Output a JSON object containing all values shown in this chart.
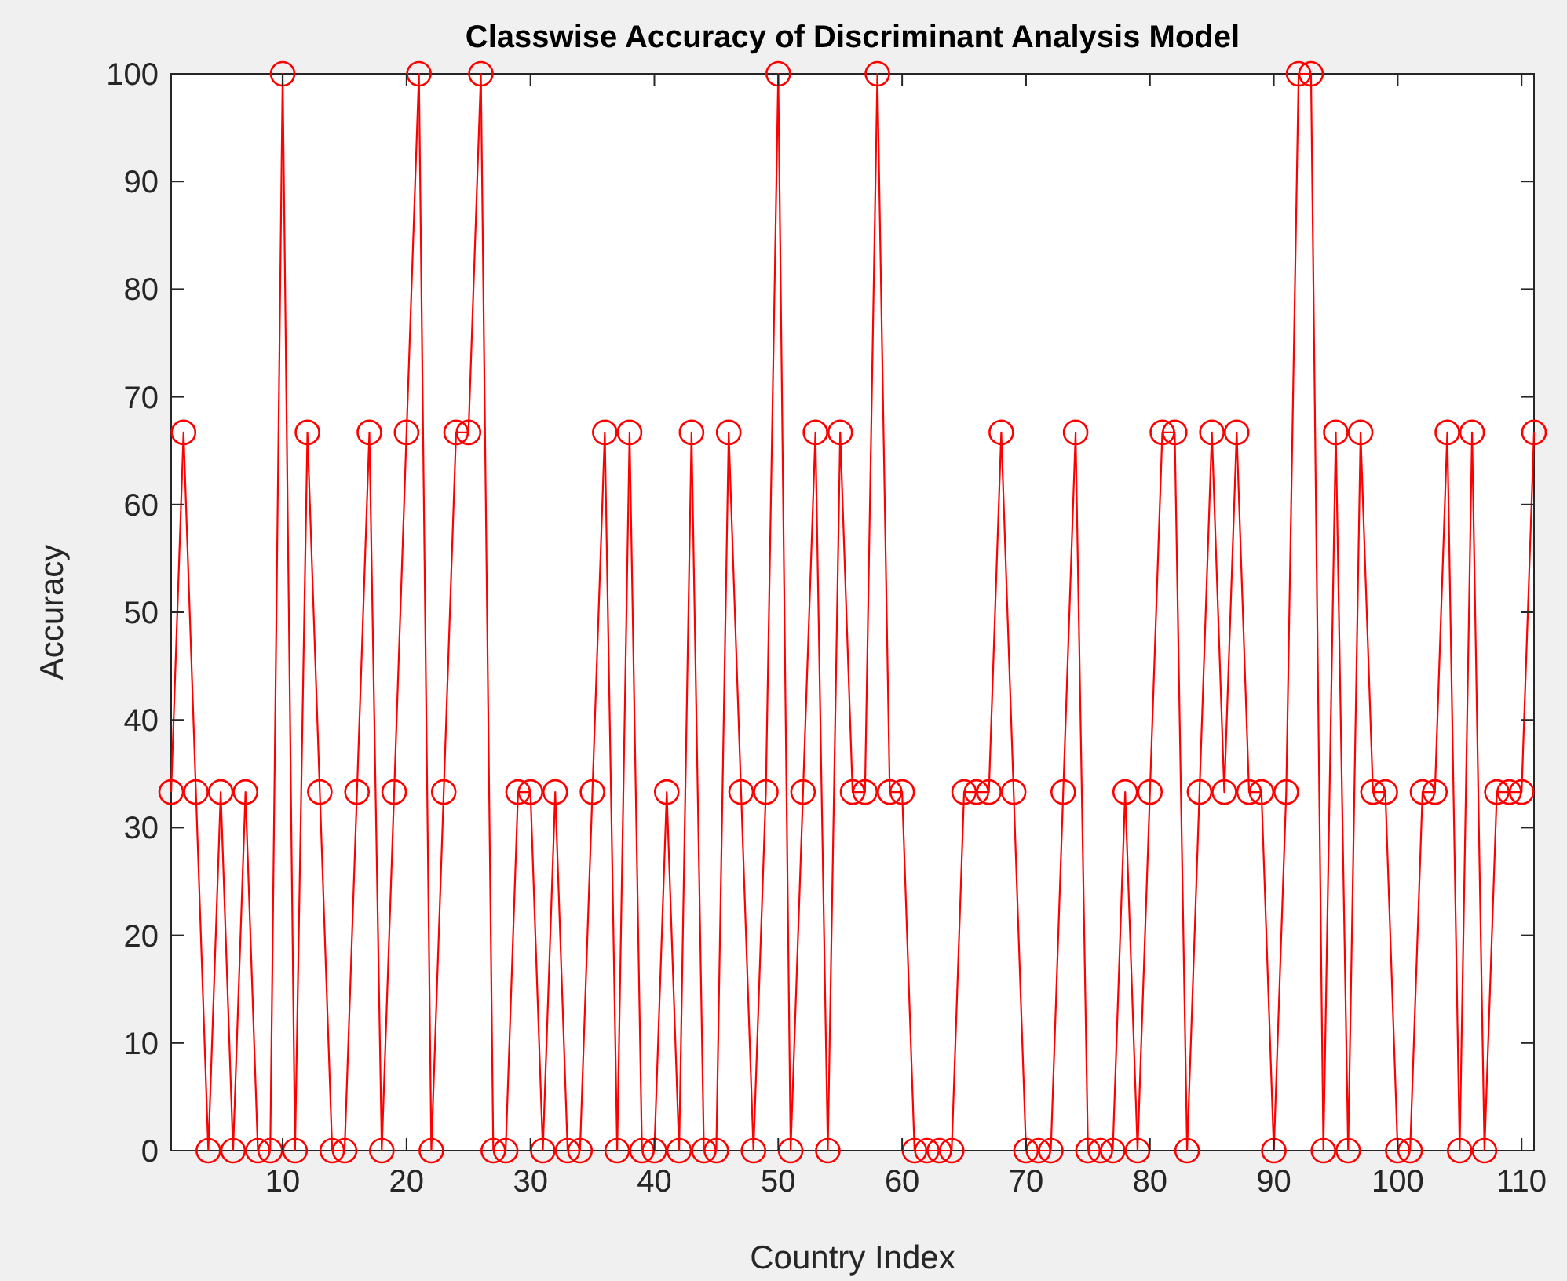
{
  "chart_data": {
    "type": "line",
    "title": "Classwise Accuracy of Discriminant Analysis Model",
    "xlabel": "Country Index",
    "ylabel": "Accuracy",
    "x": [
      1,
      2,
      3,
      4,
      5,
      6,
      7,
      8,
      9,
      10,
      11,
      12,
      13,
      14,
      15,
      16,
      17,
      18,
      19,
      20,
      21,
      22,
      23,
      24,
      25,
      26,
      27,
      28,
      29,
      30,
      31,
      32,
      33,
      34,
      35,
      36,
      37,
      38,
      39,
      40,
      41,
      42,
      43,
      44,
      45,
      46,
      47,
      48,
      49,
      50,
      51,
      52,
      53,
      54,
      55,
      56,
      57,
      58,
      59,
      60,
      61,
      62,
      63,
      64,
      65,
      66,
      67,
      68,
      69,
      70,
      71,
      72,
      73,
      74,
      75,
      76,
      77,
      78,
      79,
      80,
      81,
      82,
      83,
      84,
      85,
      86,
      87,
      88,
      89,
      90,
      91,
      92,
      93,
      94,
      95,
      96,
      97,
      98,
      99,
      100,
      101,
      102,
      103,
      104,
      105,
      106,
      107,
      108,
      109,
      110,
      111
    ],
    "series": [
      {
        "color": "#ff0000",
        "values": [
          33.3,
          66.7,
          33.3,
          0,
          33.3,
          0,
          33.3,
          0,
          0,
          100,
          0,
          66.7,
          33.3,
          0,
          0,
          33.3,
          66.7,
          0,
          33.3,
          66.7,
          100,
          0,
          33.3,
          66.7,
          66.7,
          100,
          0,
          0,
          33.3,
          33.3,
          0,
          33.3,
          0,
          0,
          33.3,
          66.7,
          0,
          66.7,
          0,
          0,
          33.3,
          0,
          66.7,
          0,
          0,
          66.7,
          33.3,
          0,
          33.3,
          100,
          0,
          33.3,
          66.7,
          0,
          66.7,
          33.3,
          33.3,
          100,
          33.3,
          33.3,
          0,
          0,
          0,
          0,
          33.3,
          33.3,
          33.3,
          66.7,
          33.3,
          0,
          0,
          0,
          33.3,
          66.7,
          0,
          0,
          0,
          33.3,
          0,
          33.3,
          66.7,
          66.7,
          0,
          33.3,
          66.7,
          33.3,
          66.7,
          33.3,
          33.3,
          0,
          33.3,
          100,
          100,
          0,
          66.7,
          0,
          66.7,
          33.3,
          33.3,
          0,
          0,
          33.3,
          33.3,
          66.7,
          0,
          66.7,
          0,
          33.3,
          33.3,
          33.3,
          66.7
        ]
      }
    ],
    "xlim": [
      1,
      111
    ],
    "xticks": [
      10,
      20,
      30,
      40,
      50,
      60,
      70,
      80,
      90,
      100,
      110
    ],
    "ylim": [
      0,
      100
    ],
    "yticks": [
      0,
      10,
      20,
      30,
      40,
      50,
      60,
      70,
      80,
      90,
      100
    ],
    "grid": false,
    "marker": "circle",
    "line_style": "solid"
  }
}
